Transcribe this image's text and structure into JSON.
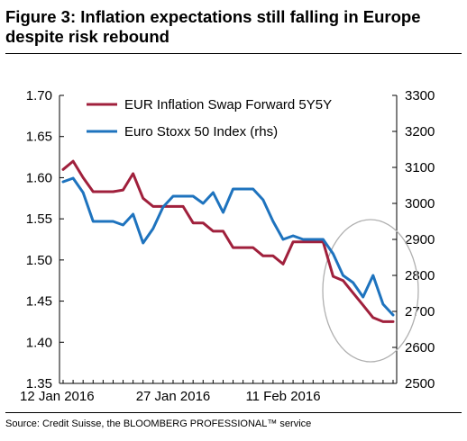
{
  "title_lines": [
    "Figure 3: Inflation expectations still falling in Europe",
    "despite risk rebound"
  ],
  "source": "Source: Credit Suisse, the BLOOMBERG PROFESSIONAL™ service",
  "chart_data": {
    "type": "line",
    "x_tick_labels": [
      "12 Jan 2016",
      "27 Jan 2016",
      "11 Feb 2016"
    ],
    "x_tick_index": [
      0,
      11,
      22
    ],
    "x_count": 34,
    "y_left": {
      "ticks": [
        "1.70",
        "1.65",
        "1.60",
        "1.55",
        "1.50",
        "1.45",
        "1.40",
        "1.35"
      ],
      "range": [
        1.35,
        1.7
      ]
    },
    "y_right": {
      "ticks": [
        "3300",
        "3200",
        "3100",
        "3000",
        "2900",
        "2800",
        "2700",
        "2600",
        "2500"
      ],
      "range": [
        2500,
        3300
      ]
    },
    "legend_placement": "top-center",
    "highlight": "ellipse around the most recent period",
    "series": [
      {
        "name": "EUR Inflation Swap Forward 5Y5Y",
        "axis": "left",
        "color": "#a0203c",
        "values": [
          1.61,
          1.62,
          1.6,
          1.583,
          1.583,
          1.583,
          1.585,
          1.605,
          1.575,
          1.565,
          1.565,
          1.565,
          1.565,
          1.545,
          1.545,
          1.535,
          1.535,
          1.515,
          1.515,
          1.515,
          1.505,
          1.505,
          1.495,
          1.522,
          1.522,
          1.522,
          1.522,
          1.48,
          1.475,
          1.46,
          1.445,
          1.43,
          1.425,
          1.425
        ]
      },
      {
        "name": "Euro Stoxx 50 Index (rhs)",
        "axis": "right",
        "color": "#1e73be",
        "values": [
          3060,
          3070,
          3030,
          2950,
          2950,
          2950,
          2940,
          2970,
          2890,
          2930,
          2990,
          3020,
          3020,
          3020,
          3000,
          3030,
          2975,
          3040,
          3040,
          3040,
          3010,
          2950,
          2900,
          2910,
          2900,
          2900,
          2900,
          2860,
          2800,
          2780,
          2740,
          2800,
          2720,
          2690
        ]
      }
    ]
  }
}
